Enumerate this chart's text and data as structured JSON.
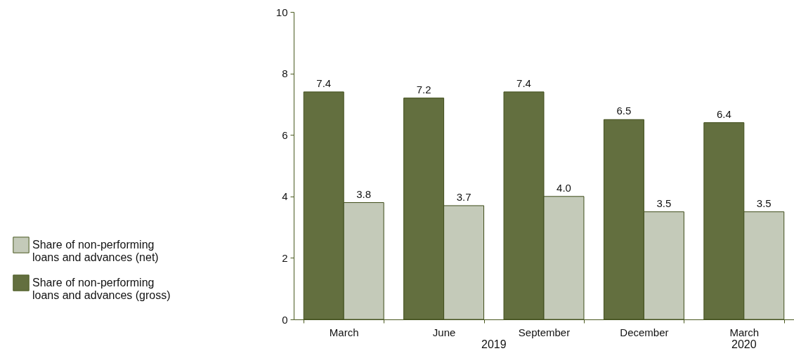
{
  "chart_data": {
    "type": "bar",
    "categories": [
      "March",
      "June",
      "September",
      "December",
      "March"
    ],
    "series": [
      {
        "name": "Share of non-performing loans and advances (gross)",
        "color": "#636f3f",
        "values": [
          7.4,
          7.2,
          7.4,
          6.5,
          6.4
        ],
        "value_labels": [
          "7.4",
          "7.2",
          "7.4",
          "6.5",
          "6.4"
        ]
      },
      {
        "name": "Share of non-performing loans and advances (net)",
        "color": "#c4cab9",
        "values": [
          3.8,
          3.7,
          4.0,
          3.5,
          3.5
        ],
        "value_labels": [
          "3.8",
          "3.7",
          "4.0",
          "3.5",
          "3.5"
        ]
      }
    ],
    "ylim": [
      0,
      10
    ],
    "yticks": [
      0,
      2,
      4,
      6,
      8,
      10
    ],
    "annotations": [
      "2019",
      "2020"
    ],
    "grid": false,
    "legend": "left"
  }
}
